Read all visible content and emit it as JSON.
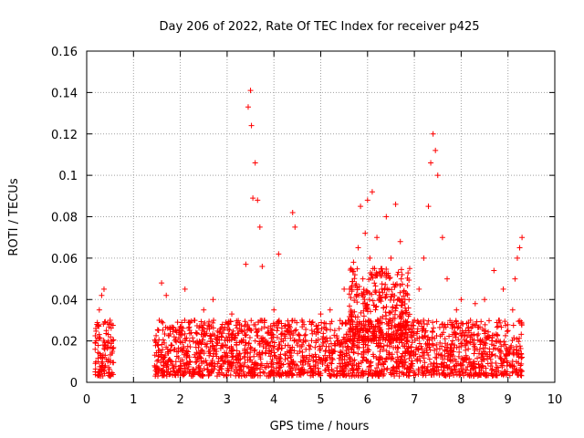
{
  "chart_data": {
    "type": "scatter",
    "title": "Day 206 of 2022, Rate Of TEC Index for receiver p425",
    "xlabel": "GPS time / hours",
    "ylabel": "ROTI / TECUs",
    "xlim": [
      0,
      10
    ],
    "ylim": [
      0,
      0.16
    ],
    "xticks": [
      0,
      1,
      2,
      3,
      4,
      5,
      6,
      7,
      8,
      9,
      10
    ],
    "yticks": [
      0,
      0.02,
      0.04,
      0.06,
      0.08,
      0.1,
      0.12,
      0.14,
      0.16
    ],
    "ytick_labels": [
      "0",
      "0.02",
      "0.04",
      "0.06",
      "0.08",
      "0.1",
      "0.12",
      "0.14",
      "0.16"
    ],
    "grid": true,
    "marker": "+",
    "series": [
      {
        "name": "ROTI",
        "color": "#ff0000",
        "x": [
          0.2,
          0.22,
          0.25,
          0.27,
          0.3,
          0.32,
          0.35,
          0.37,
          0.4,
          0.42,
          0.45,
          0.5,
          0.55,
          1.45,
          1.5,
          1.55,
          1.6,
          1.65,
          1.7,
          1.8,
          1.9,
          2.0,
          2.1,
          2.2,
          2.3,
          2.4,
          2.5,
          2.6,
          2.7,
          2.8,
          2.9,
          3.0,
          3.1,
          3.2,
          3.3,
          3.4,
          3.45,
          3.5,
          3.52,
          3.55,
          3.6,
          3.65,
          3.7,
          3.75,
          3.8,
          3.9,
          4.0,
          4.1,
          4.2,
          4.3,
          4.4,
          4.45,
          4.5,
          4.6,
          4.7,
          4.8,
          4.9,
          5.0,
          5.1,
          5.2,
          5.3,
          5.4,
          5.5,
          5.6,
          5.7,
          5.8,
          5.85,
          5.9,
          5.95,
          6.0,
          6.05,
          6.1,
          6.15,
          6.2,
          6.3,
          6.4,
          6.5,
          6.6,
          6.7,
          6.8,
          6.9,
          7.0,
          7.1,
          7.2,
          7.3,
          7.35,
          7.4,
          7.45,
          7.5,
          7.6,
          7.7,
          7.8,
          7.9,
          8.0,
          8.1,
          8.2,
          8.3,
          8.4,
          8.5,
          8.6,
          8.7,
          8.8,
          8.9,
          9.0,
          9.1,
          9.15,
          9.2,
          9.25,
          9.3
        ],
        "y": [
          0.02,
          0.028,
          0.005,
          0.035,
          0.012,
          0.042,
          0.018,
          0.045,
          0.008,
          0.025,
          0.01,
          0.03,
          0.015,
          0.008,
          0.005,
          0.03,
          0.048,
          0.012,
          0.042,
          0.018,
          0.025,
          0.01,
          0.045,
          0.02,
          0.03,
          0.008,
          0.035,
          0.015,
          0.04,
          0.022,
          0.028,
          0.012,
          0.033,
          0.018,
          0.025,
          0.057,
          0.133,
          0.141,
          0.124,
          0.089,
          0.106,
          0.088,
          0.075,
          0.056,
          0.03,
          0.015,
          0.035,
          0.062,
          0.02,
          0.025,
          0.082,
          0.075,
          0.018,
          0.03,
          0.012,
          0.028,
          0.02,
          0.033,
          0.015,
          0.035,
          0.025,
          0.018,
          0.045,
          0.03,
          0.058,
          0.065,
          0.085,
          0.05,
          0.072,
          0.088,
          0.06,
          0.092,
          0.055,
          0.07,
          0.045,
          0.08,
          0.06,
          0.086,
          0.068,
          0.04,
          0.055,
          0.03,
          0.045,
          0.06,
          0.085,
          0.106,
          0.12,
          0.112,
          0.1,
          0.07,
          0.05,
          0.028,
          0.035,
          0.04,
          0.025,
          0.03,
          0.038,
          0.02,
          0.04,
          0.022,
          0.054,
          0.03,
          0.045,
          0.025,
          0.035,
          0.05,
          0.06,
          0.065,
          0.07
        ],
        "background_cloud": [
          {
            "x_range": [
              0.18,
              0.58
            ],
            "y_range": [
              0.003,
              0.03
            ]
          },
          {
            "x_range": [
              1.45,
              9.3
            ],
            "y_range": [
              0.003,
              0.03
            ]
          },
          {
            "x_range": [
              5.6,
              6.9
            ],
            "y_range": [
              0.02,
              0.055
            ]
          }
        ]
      }
    ]
  }
}
